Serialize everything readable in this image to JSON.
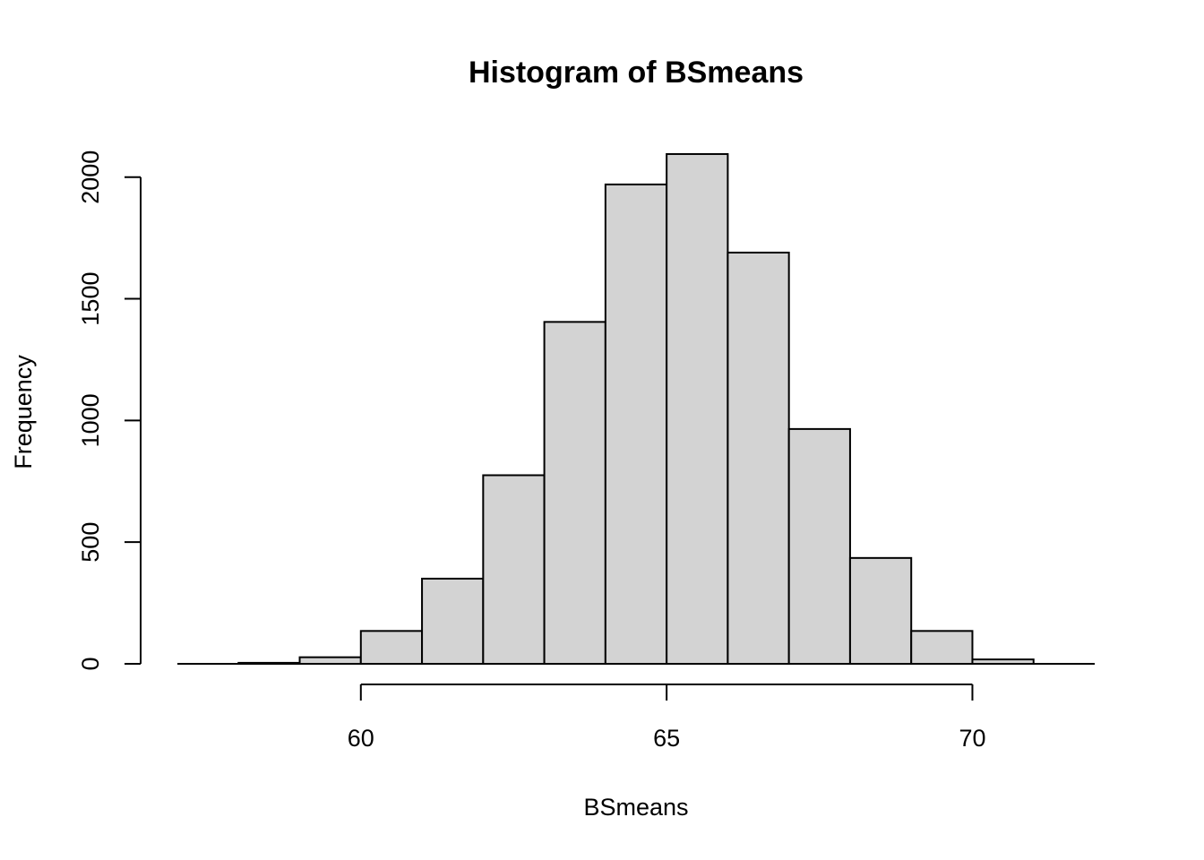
{
  "chart_data": {
    "type": "bar",
    "title": "Histogram of BSmeans",
    "xlabel": "BSmeans",
    "ylabel": "Frequency",
    "bins": [
      {
        "x0": 58,
        "x1": 59,
        "count": 4
      },
      {
        "x0": 59,
        "x1": 60,
        "count": 27
      },
      {
        "x0": 60,
        "x1": 61,
        "count": 135
      },
      {
        "x0": 61,
        "x1": 62,
        "count": 350
      },
      {
        "x0": 62,
        "x1": 63,
        "count": 775
      },
      {
        "x0": 63,
        "x1": 64,
        "count": 1405
      },
      {
        "x0": 64,
        "x1": 65,
        "count": 1970
      },
      {
        "x0": 65,
        "x1": 66,
        "count": 2095
      },
      {
        "x0": 66,
        "x1": 67,
        "count": 1690
      },
      {
        "x0": 67,
        "x1": 68,
        "count": 965
      },
      {
        "x0": 68,
        "x1": 69,
        "count": 435
      },
      {
        "x0": 69,
        "x1": 70,
        "count": 135
      },
      {
        "x0": 70,
        "x1": 71,
        "count": 18
      }
    ],
    "xlim": [
      57,
      72
    ],
    "ylim": [
      0,
      2150
    ],
    "x_ticks": [
      60,
      65,
      70
    ],
    "x_tick_labels": [
      "60",
      "65",
      "70"
    ],
    "y_ticks": [
      0,
      500,
      1000,
      1500,
      2000
    ],
    "y_tick_labels": [
      "0",
      "500",
      "1000",
      "1500",
      "2000"
    ],
    "grid": false,
    "legend": "none",
    "colors": {
      "bar_fill": "#d3d3d3",
      "bar_stroke": "#000000"
    }
  }
}
